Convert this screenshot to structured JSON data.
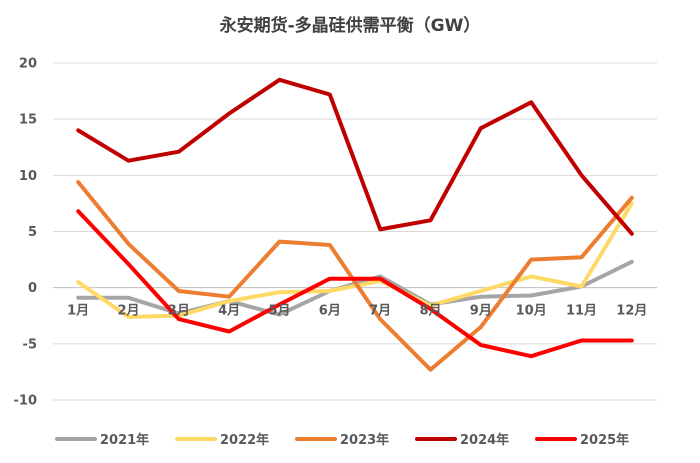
{
  "chart_data": {
    "type": "line",
    "title": "永安期货-多晶硅供需平衡（GW）",
    "xlabel": "",
    "ylabel": "",
    "categories": [
      "1月",
      "2月",
      "3月",
      "4月",
      "5月",
      "6月",
      "7月",
      "8月",
      "9月",
      "10月",
      "11月",
      "12月"
    ],
    "ylim": [
      -10,
      20
    ],
    "yticks": [
      "20",
      "15",
      "10",
      "5",
      "0",
      "-5",
      "-10"
    ],
    "grid": true,
    "legend_position": "bottom",
    "series": [
      {
        "name": "2021年",
        "color": "#a5a5a5",
        "values": [
          -0.9,
          -0.9,
          -2.3,
          -1.2,
          -2.4,
          -0.3,
          1.0,
          -1.5,
          -0.8,
          -0.7,
          0.1,
          2.3
        ]
      },
      {
        "name": "2022年",
        "color": "#ffd966",
        "values": [
          0.5,
          -2.6,
          -2.5,
          -1.2,
          -0.4,
          -0.3,
          0.6,
          -1.6,
          -0.3,
          1.0,
          0.1,
          7.5
        ]
      },
      {
        "name": "2023年",
        "color": "#ed7d31",
        "values": [
          9.4,
          3.9,
          -0.3,
          -0.8,
          4.1,
          3.8,
          -2.8,
          -7.3,
          -3.5,
          2.5,
          2.7,
          8.0
        ]
      },
      {
        "name": "2024年",
        "color": "#c00000",
        "values": [
          14.0,
          11.3,
          12.1,
          15.5,
          18.5,
          17.2,
          5.2,
          6.0,
          14.2,
          16.5,
          10.0,
          4.8
        ]
      },
      {
        "name": "2025年",
        "color": "#ff0000",
        "values": [
          6.8,
          2.1,
          -2.8,
          -3.9,
          -1.5,
          0.8,
          0.8,
          -1.9,
          -5.1,
          -6.1,
          -4.7,
          -4.7
        ]
      }
    ]
  }
}
